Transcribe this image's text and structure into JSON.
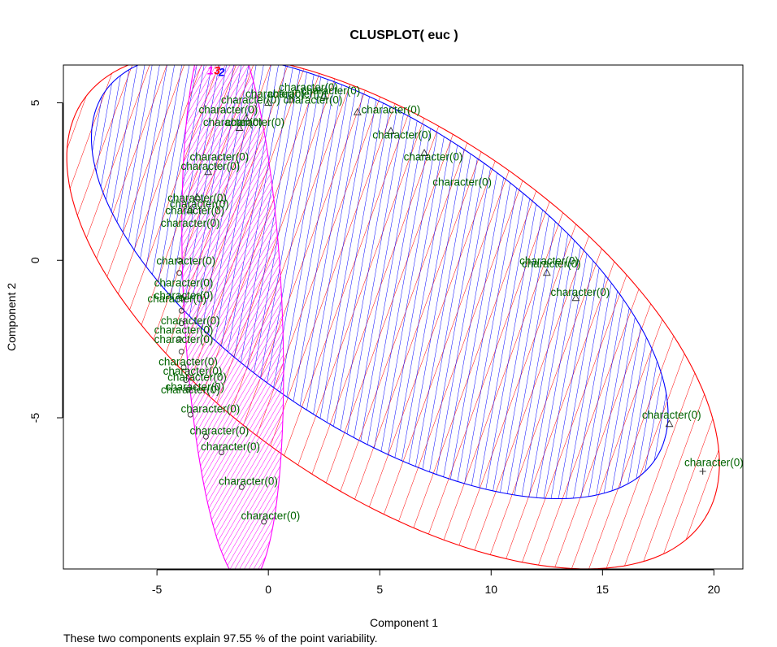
{
  "chart_data": {
    "type": "scatter",
    "title": "CLUSPLOT( euc )",
    "xlabel": "Component 1",
    "ylabel": "Component 2",
    "xlim": [
      -9.2,
      21.3
    ],
    "ylim": [
      -9.8,
      6.2
    ],
    "x_ticks": [
      -5,
      0,
      5,
      10,
      15,
      20
    ],
    "y_ticks": [
      -5,
      0,
      5
    ],
    "grid": false,
    "legend": "none",
    "point_label": "character(0)",
    "footnote": "These two components explain 97.55 % of the point variability.",
    "clusters": [
      {
        "name": "1",
        "color": "#ff00ff",
        "hatch_angle_deg": 60,
        "ellipse": {
          "center": [
            -1.6,
            -1.3
          ],
          "semi_major": 9.0,
          "semi_minor": 2.2,
          "rotation_deg": 94
        },
        "marker": "circle",
        "points": [
          [
            -4.0,
            0.0
          ],
          [
            -4.0,
            -0.4
          ],
          [
            -3.9,
            -1.2
          ],
          [
            -3.9,
            -1.6
          ],
          [
            -3.9,
            -2.0
          ],
          [
            -4.0,
            -2.5
          ],
          [
            -3.9,
            -2.9
          ],
          [
            -3.8,
            -3.4
          ],
          [
            -3.7,
            -3.8
          ],
          [
            -3.6,
            -4.1
          ],
          [
            -3.5,
            -4.9
          ],
          [
            -2.8,
            -5.6
          ],
          [
            -2.1,
            -6.1
          ],
          [
            -1.2,
            -7.2
          ],
          [
            -0.2,
            -8.3
          ]
        ]
      },
      {
        "name": "2",
        "color": "#0000ff",
        "hatch_angle_deg": 80,
        "ellipse": {
          "center": [
            5.0,
            -0.5
          ],
          "semi_major": 13.8,
          "semi_minor": 5.2,
          "rotation_deg": -22
        },
        "marker": "triangle",
        "points": [
          [
            -2.7,
            2.8
          ],
          [
            -3.5,
            1.6
          ],
          [
            -3.2,
            2.0
          ],
          [
            -1.3,
            4.2
          ],
          [
            -1.0,
            4.5
          ],
          [
            0.0,
            5.0
          ],
          [
            1.0,
            5.1
          ],
          [
            2.5,
            5.2
          ],
          [
            4.0,
            4.7
          ],
          [
            5.5,
            4.1
          ],
          [
            7.0,
            3.4
          ],
          [
            12.5,
            -0.4
          ],
          [
            13.8,
            -1.2
          ],
          [
            18.0,
            -5.2
          ]
        ]
      },
      {
        "name": "3",
        "color": "#ff0000",
        "hatch_angle_deg": 70,
        "ellipse": {
          "center": [
            5.6,
            -1.6
          ],
          "semi_major": 15.6,
          "semi_minor": 6.2,
          "rotation_deg": -22
        },
        "marker": "plus",
        "points": [
          [
            19.5,
            -6.7
          ]
        ]
      }
    ],
    "labels": [
      [
        -2.2,
        3.3
      ],
      [
        -2.6,
        3.0
      ],
      [
        -3.2,
        2.0
      ],
      [
        -3.1,
        1.8
      ],
      [
        -3.3,
        1.6
      ],
      [
        -3.5,
        1.2
      ],
      [
        -1.8,
        4.8
      ],
      [
        -0.6,
        4.4
      ],
      [
        -1.6,
        4.4
      ],
      [
        -0.8,
        5.1
      ],
      [
        0.3,
        5.3
      ],
      [
        1.3,
        5.3
      ],
      [
        2.0,
        5.1
      ],
      [
        1.8,
        5.5
      ],
      [
        2.8,
        5.4
      ],
      [
        5.5,
        4.8
      ],
      [
        6.0,
        4.0
      ],
      [
        7.4,
        3.3
      ],
      [
        8.7,
        2.5
      ],
      [
        12.6,
        0.0
      ],
      [
        12.7,
        -0.1
      ],
      [
        14.0,
        -1.0
      ],
      [
        18.1,
        -4.9
      ],
      [
        20.0,
        -6.4
      ],
      [
        -3.7,
        0.0
      ],
      [
        -3.8,
        -0.7
      ],
      [
        -3.8,
        -1.1
      ],
      [
        -4.1,
        -1.2
      ],
      [
        -3.5,
        -1.9
      ],
      [
        -3.8,
        -2.2
      ],
      [
        -3.8,
        -2.5
      ],
      [
        -3.6,
        -3.2
      ],
      [
        -3.4,
        -3.5
      ],
      [
        -3.2,
        -3.7
      ],
      [
        -3.3,
        -4.0
      ],
      [
        -3.5,
        -4.1
      ],
      [
        -2.6,
        -4.7
      ],
      [
        -2.2,
        -5.4
      ],
      [
        -1.7,
        -5.9
      ],
      [
        -0.9,
        -7.0
      ],
      [
        0.1,
        -8.1
      ]
    ]
  }
}
